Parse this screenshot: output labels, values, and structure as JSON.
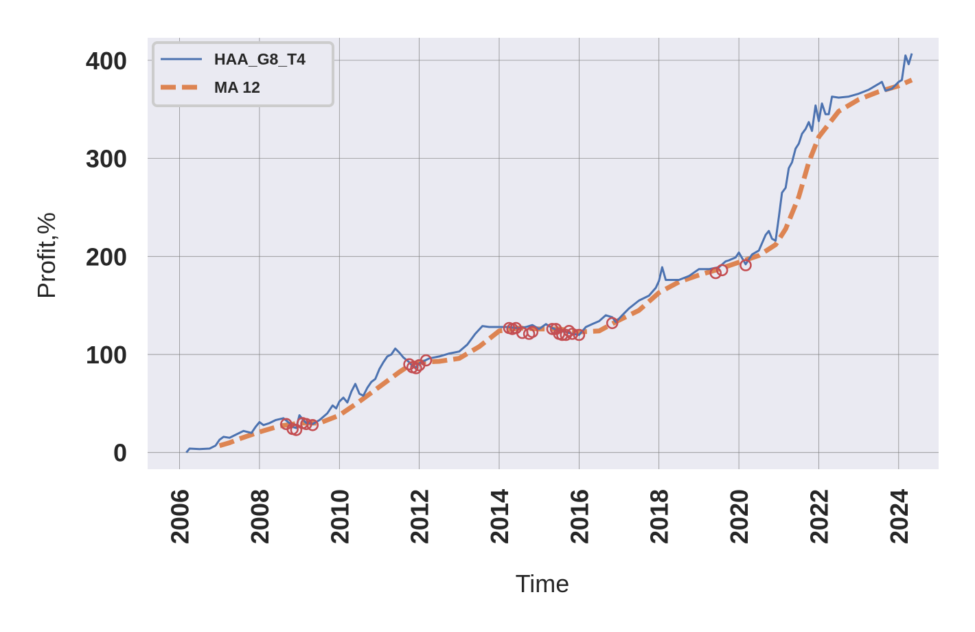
{
  "chart_data": {
    "type": "line",
    "title": "",
    "xlabel": "Time",
    "ylabel": "Profit,%",
    "xlim": [
      2005.2,
      2025.0
    ],
    "ylim": [
      -17,
      423
    ],
    "x_ticks": [
      2006,
      2008,
      2010,
      2012,
      2014,
      2016,
      2018,
      2020,
      2022,
      2024
    ],
    "y_ticks": [
      0,
      100,
      200,
      300,
      400
    ],
    "grid": true,
    "legend_position": "top-left",
    "colors": {
      "background": "#eaeaf2",
      "grid": "#7f7f7f",
      "series_main": "#4c72b0",
      "series_ma": "#dd8452",
      "markers": "#c44e52"
    },
    "series": [
      {
        "name": "HAA_G8_T4",
        "style": "solid",
        "points": [
          [
            2006.17,
            0
          ],
          [
            2006.25,
            4
          ],
          [
            2006.5,
            3.5
          ],
          [
            2006.75,
            4
          ],
          [
            2006.9,
            7
          ],
          [
            2007.0,
            13
          ],
          [
            2007.1,
            16
          ],
          [
            2007.25,
            15
          ],
          [
            2007.4,
            18
          ],
          [
            2007.6,
            22
          ],
          [
            2007.8,
            20
          ],
          [
            2007.9,
            26
          ],
          [
            2008.0,
            31
          ],
          [
            2008.1,
            28
          ],
          [
            2008.25,
            30
          ],
          [
            2008.4,
            33
          ],
          [
            2008.6,
            35
          ],
          [
            2008.75,
            30
          ],
          [
            2008.83,
            26
          ],
          [
            2008.92,
            25
          ],
          [
            2009.0,
            38
          ],
          [
            2009.08,
            34
          ],
          [
            2009.17,
            30
          ],
          [
            2009.25,
            30
          ],
          [
            2009.33,
            29
          ],
          [
            2009.5,
            33
          ],
          [
            2009.7,
            40
          ],
          [
            2009.83,
            48
          ],
          [
            2009.92,
            45
          ],
          [
            2010.0,
            52
          ],
          [
            2010.1,
            56
          ],
          [
            2010.2,
            51
          ],
          [
            2010.3,
            62
          ],
          [
            2010.4,
            70
          ],
          [
            2010.5,
            60
          ],
          [
            2010.6,
            58
          ],
          [
            2010.7,
            66
          ],
          [
            2010.8,
            72
          ],
          [
            2010.9,
            75
          ],
          [
            2011.0,
            85
          ],
          [
            2011.1,
            92
          ],
          [
            2011.2,
            98
          ],
          [
            2011.3,
            100
          ],
          [
            2011.4,
            106
          ],
          [
            2011.5,
            102
          ],
          [
            2011.6,
            97
          ],
          [
            2011.75,
            92
          ],
          [
            2011.83,
            88
          ],
          [
            2011.92,
            87
          ],
          [
            2012.0,
            91
          ],
          [
            2012.1,
            93
          ],
          [
            2012.25,
            96
          ],
          [
            2012.5,
            98
          ],
          [
            2012.75,
            101
          ],
          [
            2013.0,
            103
          ],
          [
            2013.2,
            110
          ],
          [
            2013.4,
            121
          ],
          [
            2013.58,
            129
          ],
          [
            2013.75,
            128
          ],
          [
            2014.0,
            128
          ],
          [
            2014.25,
            128
          ],
          [
            2014.42,
            127
          ],
          [
            2014.5,
            127
          ],
          [
            2014.67,
            128
          ],
          [
            2014.83,
            130
          ],
          [
            2015.0,
            126
          ],
          [
            2015.17,
            131
          ],
          [
            2015.33,
            127
          ],
          [
            2015.5,
            124
          ],
          [
            2015.67,
            123
          ],
          [
            2015.83,
            121
          ],
          [
            2016.0,
            120
          ],
          [
            2016.17,
            128
          ],
          [
            2016.33,
            131
          ],
          [
            2016.5,
            134
          ],
          [
            2016.67,
            140
          ],
          [
            2016.83,
            138
          ],
          [
            2016.92,
            133
          ],
          [
            2017.08,
            140
          ],
          [
            2017.25,
            147
          ],
          [
            2017.5,
            155
          ],
          [
            2017.75,
            160
          ],
          [
            2017.92,
            168
          ],
          [
            2018.0,
            175
          ],
          [
            2018.08,
            189
          ],
          [
            2018.17,
            176
          ],
          [
            2018.5,
            176
          ],
          [
            2018.75,
            180
          ],
          [
            2019.0,
            187
          ],
          [
            2019.25,
            187
          ],
          [
            2019.5,
            189
          ],
          [
            2019.67,
            195
          ],
          [
            2019.75,
            196
          ],
          [
            2019.92,
            199
          ],
          [
            2020.0,
            204
          ],
          [
            2020.17,
            192
          ],
          [
            2020.33,
            202
          ],
          [
            2020.5,
            206
          ],
          [
            2020.67,
            222
          ],
          [
            2020.75,
            226
          ],
          [
            2020.83,
            218
          ],
          [
            2020.92,
            216
          ],
          [
            2021.0,
            240
          ],
          [
            2021.08,
            265
          ],
          [
            2021.17,
            270
          ],
          [
            2021.25,
            290
          ],
          [
            2021.33,
            296
          ],
          [
            2021.42,
            310
          ],
          [
            2021.5,
            315
          ],
          [
            2021.58,
            325
          ],
          [
            2021.67,
            330
          ],
          [
            2021.75,
            337
          ],
          [
            2021.83,
            328
          ],
          [
            2021.92,
            354
          ],
          [
            2022.0,
            338
          ],
          [
            2022.08,
            356
          ],
          [
            2022.17,
            345
          ],
          [
            2022.25,
            345
          ],
          [
            2022.33,
            363
          ],
          [
            2022.5,
            362
          ],
          [
            2022.75,
            363
          ],
          [
            2023.0,
            366
          ],
          [
            2023.25,
            370
          ],
          [
            2023.5,
            376
          ],
          [
            2023.58,
            378
          ],
          [
            2023.67,
            369
          ],
          [
            2023.83,
            371
          ],
          [
            2024.0,
            378
          ],
          [
            2024.08,
            380
          ],
          [
            2024.17,
            405
          ],
          [
            2024.25,
            396
          ],
          [
            2024.33,
            407
          ]
        ]
      },
      {
        "name": "MA 12",
        "style": "dashed",
        "points": [
          [
            2007.0,
            7
          ],
          [
            2007.25,
            10
          ],
          [
            2007.5,
            14
          ],
          [
            2008.0,
            21
          ],
          [
            2008.5,
            27
          ],
          [
            2009.0,
            30
          ],
          [
            2009.5,
            30
          ],
          [
            2010.0,
            38
          ],
          [
            2010.5,
            52
          ],
          [
            2011.0,
            67
          ],
          [
            2011.5,
            82
          ],
          [
            2011.83,
            91
          ],
          [
            2012.0,
            92
          ],
          [
            2012.5,
            93
          ],
          [
            2013.0,
            96
          ],
          [
            2013.5,
            108
          ],
          [
            2014.0,
            124
          ],
          [
            2014.5,
            127
          ],
          [
            2015.0,
            126
          ],
          [
            2015.5,
            126
          ],
          [
            2016.0,
            123
          ],
          [
            2016.5,
            124
          ],
          [
            2017.0,
            135
          ],
          [
            2017.5,
            145
          ],
          [
            2018.0,
            163
          ],
          [
            2018.5,
            174
          ],
          [
            2019.0,
            181
          ],
          [
            2019.5,
            187
          ],
          [
            2020.0,
            194
          ],
          [
            2020.5,
            201
          ],
          [
            2020.92,
            212
          ],
          [
            2021.17,
            228
          ],
          [
            2021.5,
            261
          ],
          [
            2021.75,
            296
          ],
          [
            2022.0,
            322
          ],
          [
            2022.5,
            348
          ],
          [
            2023.0,
            360
          ],
          [
            2023.5,
            368
          ],
          [
            2024.0,
            374
          ],
          [
            2024.33,
            380
          ]
        ]
      }
    ],
    "markers": [
      [
        2008.67,
        29
      ],
      [
        2008.83,
        24
      ],
      [
        2008.92,
        23
      ],
      [
        2009.08,
        30
      ],
      [
        2009.17,
        29
      ],
      [
        2009.33,
        28
      ],
      [
        2011.75,
        90
      ],
      [
        2011.83,
        87
      ],
      [
        2011.92,
        86
      ],
      [
        2012.0,
        89
      ],
      [
        2012.17,
        94
      ],
      [
        2014.25,
        127
      ],
      [
        2014.33,
        126
      ],
      [
        2014.42,
        127
      ],
      [
        2014.58,
        122
      ],
      [
        2014.75,
        121
      ],
      [
        2014.83,
        123
      ],
      [
        2015.33,
        126
      ],
      [
        2015.42,
        126
      ],
      [
        2015.5,
        121
      ],
      [
        2015.58,
        120
      ],
      [
        2015.67,
        120
      ],
      [
        2015.75,
        124
      ],
      [
        2015.83,
        121
      ],
      [
        2016.0,
        120
      ],
      [
        2016.83,
        132
      ],
      [
        2019.42,
        183
      ],
      [
        2019.58,
        186
      ],
      [
        2020.17,
        191
      ]
    ]
  }
}
